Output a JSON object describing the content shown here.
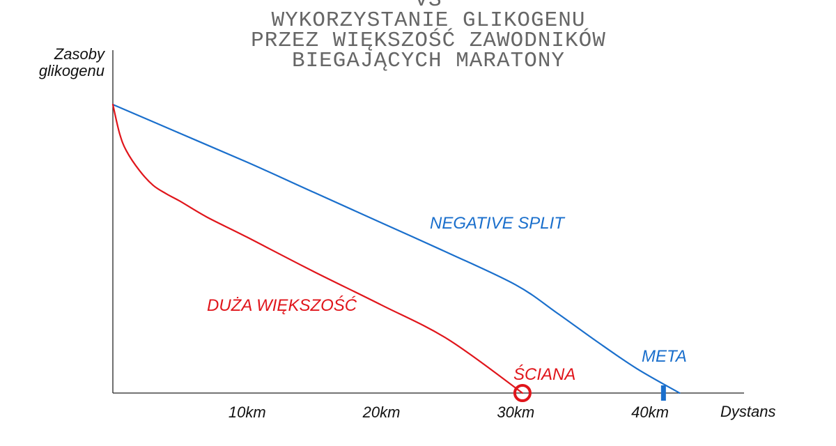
{
  "chart_data": {
    "type": "line",
    "title_lines": [
      "VS",
      "WYKORZYSTANIE GLIKOGENU",
      "PRZEZ WIĘKSZOŚĆ ZAWODNIKÓW",
      "BIEGAJĄCYCH MARATONY"
    ],
    "ylabel_lines": [
      "Zasoby",
      "glikogenu"
    ],
    "xlabel": "Dystans",
    "xlim": [
      0,
      47
    ],
    "ylim": [
      0,
      100
    ],
    "x_ticks": [
      {
        "value": 10,
        "label": "10km"
      },
      {
        "value": 20,
        "label": "20km"
      },
      {
        "value": 30,
        "label": "30km"
      },
      {
        "value": 40,
        "label": "40km"
      }
    ],
    "series": [
      {
        "name": "NEGATIVE SPLIT",
        "color": "#1a6fcc",
        "x": [
          0,
          5,
          10,
          15,
          20,
          25,
          30,
          33,
          36,
          39,
          42.2
        ],
        "y": [
          100,
          90,
          80,
          69.5,
          59,
          48.5,
          37.5,
          28,
          18,
          8.5,
          0
        ]
      },
      {
        "name": "DUŻA WIĘKSZOŚĆ",
        "color": "#e0151b",
        "x": [
          0,
          0.5,
          1,
          2,
          3,
          4,
          5,
          7,
          10,
          15,
          20,
          25,
          30.5
        ],
        "y": [
          100,
          90,
          84,
          77,
          72,
          69,
          66.5,
          61,
          54,
          42,
          30.5,
          18.5,
          0
        ]
      }
    ],
    "annotations": [
      {
        "label": "NEGATIVE SPLIT",
        "color": "#1a6fcc"
      },
      {
        "label": "DUŻA WIĘKSZOŚĆ",
        "color": "#e0151b"
      },
      {
        "label": "ŚCIANA",
        "color": "#e0151b",
        "marker": "circle",
        "x": 30.5,
        "y": 0
      },
      {
        "label": "META",
        "color": "#1a6fcc",
        "marker": "bar",
        "x": 41,
        "y": 0
      }
    ]
  }
}
